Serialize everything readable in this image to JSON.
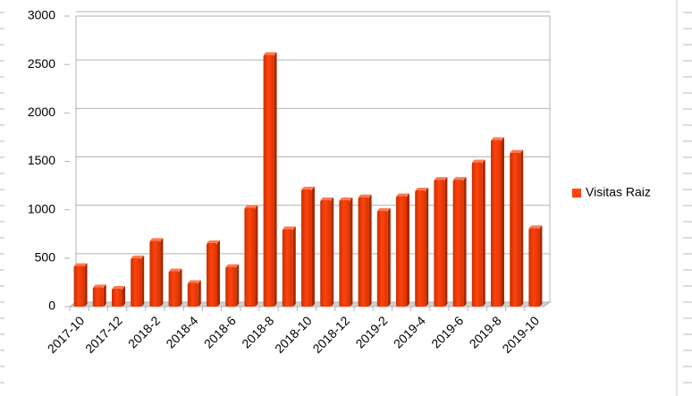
{
  "chart_data": {
    "type": "bar",
    "categories": [
      "2017-10",
      null,
      "2017-12",
      null,
      "2018-2",
      null,
      "2018-4",
      null,
      "2018-6",
      null,
      "2018-8",
      null,
      "2018-10",
      null,
      "2018-12",
      null,
      "2019-2",
      null,
      "2019-4",
      null,
      "2019-6",
      null,
      "2019-8",
      null,
      "2019-10"
    ],
    "series": [
      {
        "name": "Visitas Raiz",
        "color": "#ff420e",
        "values": [
          420,
          200,
          185,
          500,
          680,
          365,
          245,
          655,
          410,
          1020,
          2600,
          800,
          1210,
          1100,
          1100,
          1130,
          990,
          1140,
          1200,
          1310,
          1310,
          1490,
          1720,
          1590,
          810
        ]
      }
    ],
    "ylim": [
      0,
      3000
    ],
    "yticks": [
      0,
      500,
      1000,
      1500,
      2000,
      2500,
      3000
    ],
    "grid": true,
    "legend": "right"
  }
}
